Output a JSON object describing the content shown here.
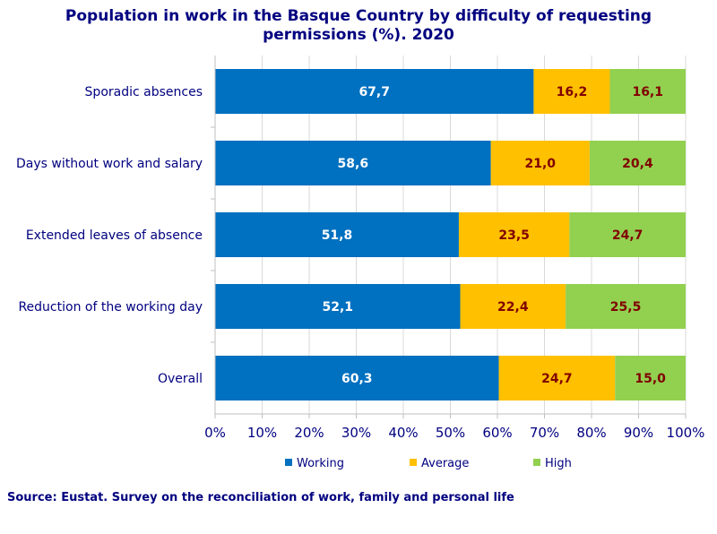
{
  "chart_data": {
    "type": "bar",
    "orientation": "horizontal",
    "stacked": true,
    "title_lines": [
      "Population in work in the Basque Country by difficulty of requesting",
      "permissions (%). 2020"
    ],
    "categories": [
      "Sporadic absences",
      "Days without work and salary",
      "Extended leaves of absence",
      "Reduction of the working day",
      "Overall"
    ],
    "series": [
      {
        "name": "Working",
        "color": "#0070C0",
        "label_color": "#ffffff",
        "values": [
          67.7,
          58.6,
          51.8,
          52.1,
          60.3
        ],
        "labels": [
          "67,7",
          "58,6",
          "51,8",
          "52,1",
          "60,3"
        ]
      },
      {
        "name": "Average",
        "color": "#FFC000",
        "label_color": "#800000",
        "values": [
          16.2,
          21.0,
          23.5,
          22.4,
          24.7
        ],
        "labels": [
          "16,2",
          "21,0",
          "23,5",
          "22,4",
          "24,7"
        ]
      },
      {
        "name": "High",
        "color": "#92D050",
        "label_color": "#800000",
        "values": [
          16.1,
          20.4,
          24.7,
          25.5,
          15.0
        ],
        "labels": [
          "16,1",
          "20,4",
          "24,7",
          "25,5",
          "15,0"
        ]
      }
    ],
    "x_ticks": [
      "0%",
      "10%",
      "20%",
      "30%",
      "40%",
      "50%",
      "60%",
      "70%",
      "80%",
      "90%",
      "100%"
    ],
    "xlim": [
      0,
      100
    ],
    "grid": "vertical",
    "legend_position": "bottom",
    "source": "Source: Eustat. Survey on the reconciliation of work, family and personal life"
  }
}
